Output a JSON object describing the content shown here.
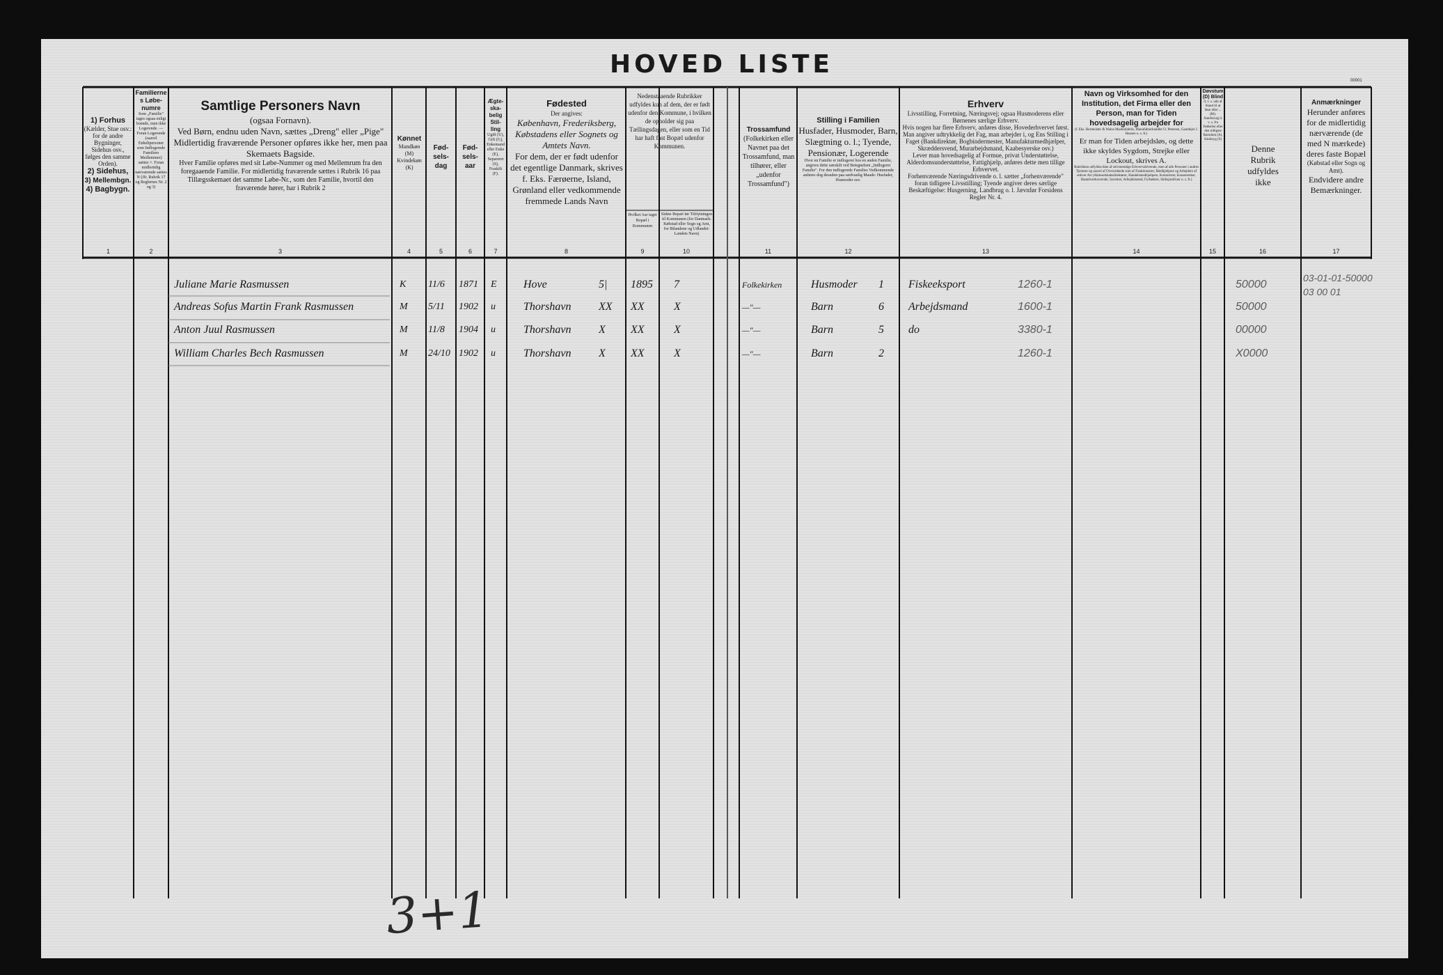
{
  "title": "HOVED LISTE",
  "small_print": "00001",
  "columns": [
    {
      "num": "1",
      "title": "1) Forhus",
      "lines": [
        "(Kælder, Stue osv.: for de andre Bygninger, Sidehus osv., følges den samme Orden).",
        "2) Sidehus,",
        "3) Mellembgn.",
        "4) Bagbygn."
      ]
    },
    {
      "num": "2",
      "title": "Familiernes Løbe-numre",
      "lines": [
        "Som „Familie\" tages ogsaa enligt boende, men ikke Logerende. — Foran Logerende (saavel Enkeltpersoner som Indlogerede Familiers Medlemmer) sættes ×. Foran midlertidig nærværende sættes N (Jfr. Rubrik 17 og Reglernes Nr. 2 og 3)"
      ]
    },
    {
      "num": "3",
      "title": "Samtlige Personers Navn",
      "lines": [
        "(ogsaa Fornavn).",
        "Ved Børn, endnu uden Navn, sættes „Dreng\" eller „Pige\"",
        "Midlertidig fraværende Personer opføres ikke her, men paa Skemaets Bagside.",
        "Hver Familie opføres med sit Løbe-Nummer og med Mellemrum fra den foregaaende Familie. For midlertidig fraværende sættes i Rubrik 16 paa Tillægsskemaet det samme Løbe-Nr., som den Familie, hvortil den fraværende hører, har i Rubrik 2"
      ]
    },
    {
      "num": "4",
      "title": "Kønnet",
      "lines": [
        "Mandkøn (M) Kvindekøn (K)"
      ]
    },
    {
      "num": "5",
      "title": "Fød-sels-dag",
      "lines": []
    },
    {
      "num": "6",
      "title": "Fød-sels-aar",
      "lines": []
    },
    {
      "num": "7",
      "title": "Ægte-ska-belig Stil-ling",
      "lines": [
        "Ugift (U), Gift (G), Enkemand eller Enke (E), Separeret (S), Fraskilt (F)."
      ]
    },
    {
      "num": "8",
      "title": "Fødested",
      "lines": [
        "Der angives:",
        "København, Frederiksberg, Købstadens eller Sognets og Amtets Navn.",
        "For dem, der er født udenfor det egentlige Danmark, skrives f. Eks. Færøerne, Island, Grønland eller vedkommende fremmede Lands Navn"
      ]
    },
    {
      "num": "9-10",
      "title": "",
      "lines": [
        "Nedenstaaende Rubrikker udfyldes kun af dem, der er født udenfor den Kommune, i hvilken de opholder sig paa Tællingsdagen, eller som en Tid har haft fast Bopæl udenfor Kommunen."
      ]
    },
    {
      "num": "9",
      "title": "",
      "lines": [
        "Hvilket Aar taget Bopæl i Kommunen"
      ]
    },
    {
      "num": "10",
      "title": "",
      "lines": [
        "Sidste Bopæl før Tilflytningen til Kommunen (for Danmark: Købstad eller Sogn og Amt, for Bilandene og Udlandet: Landets Navn)"
      ]
    },
    {
      "num": "11",
      "title": "Trossamfund",
      "lines": [
        "(Folkekirken eller Navnet paa det Trossamfund, man tilhører, eller „udenfor Trossamfund\")"
      ]
    },
    {
      "num": "12",
      "title": "Stilling i Familien",
      "lines": [
        "Husfader, Husmoder, Barn, Slægtning o. l.; Tyende, Pensionær, Logerende",
        "Hvor en Familie er indlogeret hos en anden Familie, angives dette særskilt ved Betegnelsen „Indlogeret Familie\". For den indlogerede Familiss Vedkommende anføres dog desuden paa sædvanlig Maade: Husfader, Husmoder osv."
      ]
    },
    {
      "num": "13",
      "title": "Erhverv",
      "lines": [
        "Livsstilling, Forretning, Næringsvej; ogsaa Husmoderens eller Børnenes særlige Erhverv.",
        "Hvis nogen har flere Erhverv, anføres disse, Hovederhvervet først.",
        "Man angiver udtrykkelig det Fag, man arbejder i, og Ens Stilling i Faget (Bankdirektør, Bogbindermester, Manufakturmedhjælper, Skræddersvend, Murarbejdsmand, Kaabesyerske osv.)",
        "Lever man hovedsagelig af Formue, privat Understøttelse, Alderdomsunderstøttelse, Fattighjælp, anføres dette men tillige Erhvervet.",
        "Forhenværende Næringsdrivende o. l. sætter „forhenværende\" foran tidligere Livsstilling; Tyende angiver deres særlige Beskæftigelse: Husgerning, Landbrug o. l. Jævnfør Forsidens Regler Nr. 4."
      ]
    },
    {
      "num": "14",
      "title": "Navn og Virksomhed for den Institution, det Firma eller den Person, man for Tiden hovedsagelig arbejder for",
      "lines": [
        "(f. Eks. Burmeister & Wains Maskinfabrik, Manufakturhandler O. Petersen, Gaardejer J. Hansen o. s. fr.)",
        "Er man for Tiden arbejdsløs, og dette ikke skyldes Sygdom, Strejke eller Lockout, skrives A.",
        "Rubrikken udfyldes ikke af selvstændige Erhvervsdrivende, men af alle Personer i andres Tjeneste og saavel af Overordnede som af Funktionærer, Medhjælpere og Arbejdere af enhver Art (Aktieselskabsdirektører, Handelsmedhjælpere, Kontorister, Kasserersker, Haandværkssvende, Syersker, Arbejdsmænd, Fyrbødere, Skibsjomfruer o. s. fr.)"
      ]
    },
    {
      "num": "15",
      "title": "Døvstum (D) Blind",
      "lines": [
        "d. v. s. ude af Stand til at læse eller ... (Bl). Aandssvag d. v. s. fra Fødselen eller den tidligste Barndom (A). Sindssyg (S)"
      ]
    },
    {
      "num": "16",
      "title": "",
      "lines": [
        "Denne Rubrik udfyldes ikke"
      ]
    },
    {
      "num": "17",
      "title": "Anmærkninger",
      "lines": [
        "Herunder anføres for de midlertidig nærværende (de med N mærkede) deres faste Bopæl",
        "(Købstad eller Sogn og Amt).",
        "Endvidere andre Bemærkninger."
      ]
    }
  ],
  "rows": [
    {
      "name": "Juliane Marie Rasmussen",
      "sex": "K",
      "birth_day": "11/6",
      "birth_year": "1871",
      "marital": "E",
      "birthplace": "Hove",
      "c9a": "5|",
      "year_moved": "1895",
      "prev_residence": "7",
      "religion": "Folkekirken",
      "family_position": "Husmoder",
      "fp_code": "1",
      "occupation": "Fiskeeksport",
      "occ_code": "1260-1",
      "col16": "50000",
      "col17": [
        "03-01-01-50000",
        "03 00 01"
      ]
    },
    {
      "name": "Andreas Sofus Martin Frank Rasmussen",
      "sex": "M",
      "birth_day": "5/11",
      "birth_year": "1902",
      "marital": "u",
      "birthplace": "Thorshavn",
      "c9a": "XX",
      "year_moved": "XX",
      "prev_residence": "X",
      "religion": "—\"—",
      "family_position": "Barn",
      "fp_code": "6",
      "occupation": "Arbejdsmand",
      "occ_code": "1600-1",
      "col16": "50000",
      "col17": []
    },
    {
      "name": "Anton Juul Rasmussen",
      "sex": "M",
      "birth_day": "11/8",
      "birth_year": "1904",
      "marital": "u",
      "birthplace": "Thorshavn",
      "c9a": "X",
      "year_moved": "XX",
      "prev_residence": "X",
      "religion": "—\"—",
      "family_position": "Barn",
      "fp_code": "5",
      "occupation": "do",
      "occ_code": "3380-1",
      "col16": "00000",
      "col17": []
    },
    {
      "name": "William Charles Bech Rasmussen",
      "sex": "M",
      "birth_day": "24/10",
      "birth_year": "1902",
      "marital": "u",
      "birthplace": "Thorshavn",
      "c9a": "X",
      "year_moved": "XX",
      "prev_residence": "X",
      "religion": "—\"—",
      "family_position": "Barn",
      "fp_code": "2",
      "occupation": "",
      "occ_code": "1260-1",
      "col16": "X0000",
      "col17": []
    }
  ],
  "bottom_note": "3+1"
}
